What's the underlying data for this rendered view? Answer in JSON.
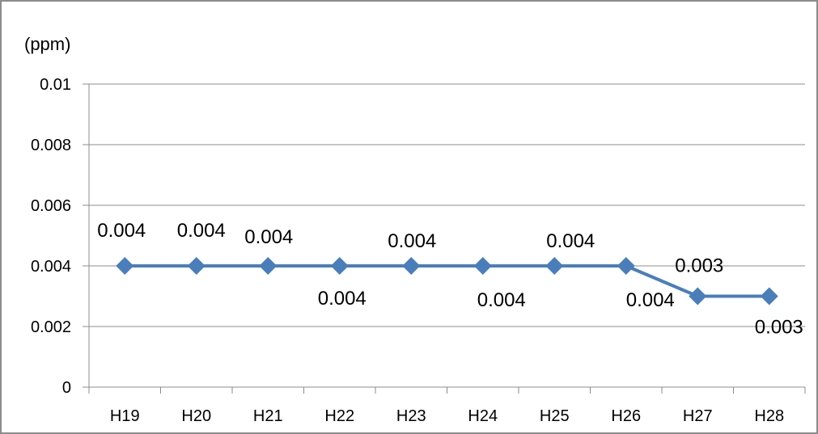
{
  "chart_data": {
    "type": "line",
    "title": "",
    "xlabel": "",
    "ylabel": "(ppm)",
    "categories": [
      "H19",
      "H20",
      "H21",
      "H22",
      "H23",
      "H24",
      "H25",
      "H26",
      "H27",
      "H28"
    ],
    "series": [
      {
        "values": [
          0.004,
          0.004,
          0.004,
          0.004,
          0.004,
          0.004,
          0.004,
          0.004,
          0.003,
          0.003
        ],
        "color": "#4a7ebb",
        "marker": "diamond"
      }
    ],
    "data_labels": [
      "0.004",
      "0.004",
      "0.004",
      "0.004",
      "0.004",
      "0.004",
      "0.004",
      "0.004",
      "0.003",
      "0.003"
    ],
    "ylim": [
      0,
      0.01
    ],
    "y_ticks": [
      0,
      0.002,
      0.004,
      0.006,
      0.008,
      0.01
    ],
    "y_tick_labels": [
      "0",
      "0.002",
      "0.004",
      "0.006",
      "0.008",
      "0.01"
    ],
    "grid": true,
    "legend": "none"
  }
}
